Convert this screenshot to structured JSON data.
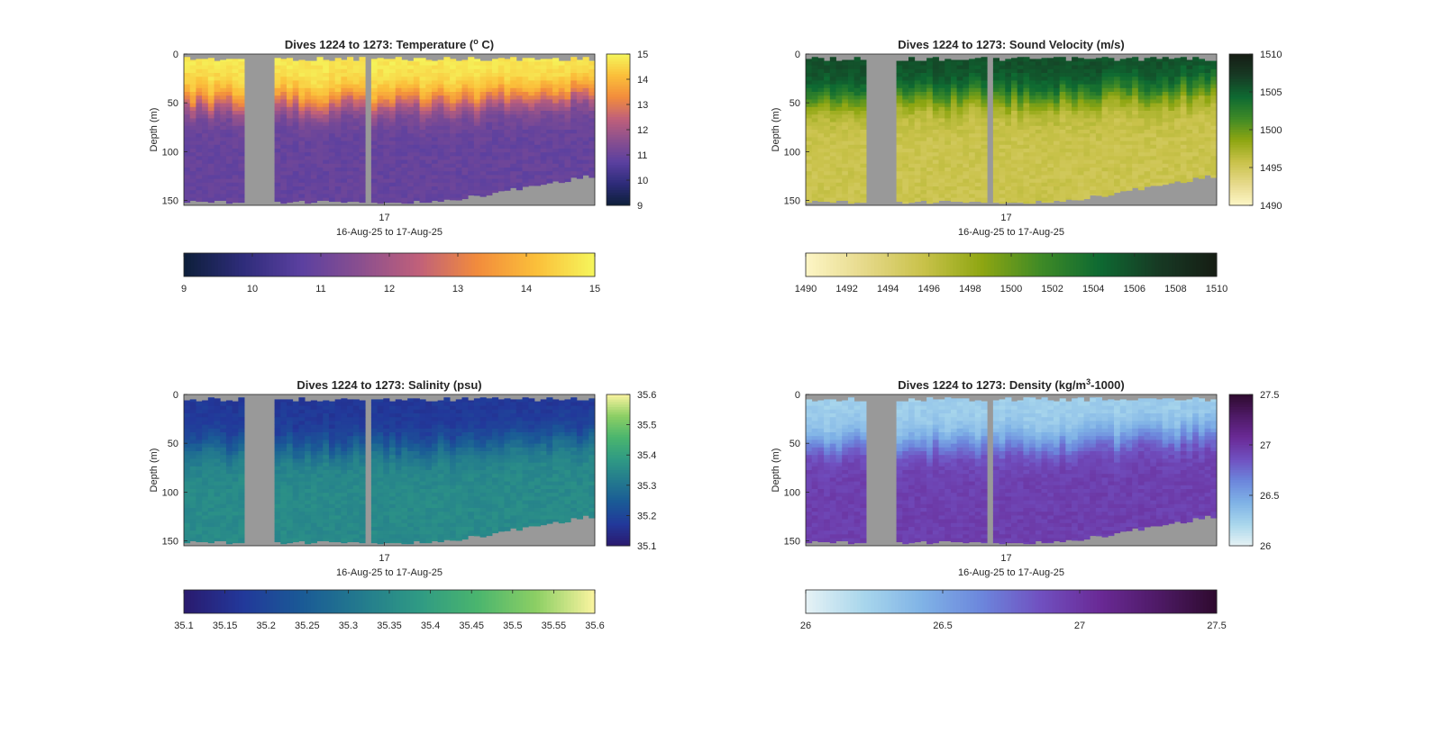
{
  "figure": {
    "colors": {
      "background": "#ffffff",
      "missing_data": "#999999",
      "axis": "#262626"
    }
  },
  "chart_data": [
    {
      "id": "temperature",
      "type": "heatmap",
      "title_parts": [
        "Dives 1224 to 1273: Temperature (",
        "o",
        " C)"
      ],
      "title_styles": [
        "",
        "sup",
        ""
      ],
      "xlabel": "16-Aug-25 to 17-Aug-25",
      "ylabel": "Depth (m)",
      "x_ticks": [
        "17"
      ],
      "y_ticks": [
        "0",
        "50",
        "100",
        "150"
      ],
      "ylim": [
        0,
        155
      ],
      "y_reversed": true,
      "dives": [
        1224,
        1273
      ],
      "time_range": [
        "16-Aug-25",
        "17-Aug-25"
      ],
      "colormap": [
        "#0d1f3a",
        "#2e2c7a",
        "#5b40a0",
        "#8a4f8f",
        "#c0607a",
        "#f28c3c",
        "#fbbf3a",
        "#f5f65c"
      ],
      "clim": [
        9,
        15
      ],
      "colorbar_ticks": [
        "9",
        "10",
        "11",
        "12",
        "13",
        "14",
        "15"
      ],
      "horizontal_colorbar_ticks": [
        "9",
        "10",
        "11",
        "12",
        "13",
        "14",
        "15"
      ],
      "profile_pattern": {
        "surface_value": 14.8,
        "deep_value": 10.9,
        "mixed_layer_depth_m": 50,
        "data_gaps_fraction": [
          [
            0.14,
            0.22
          ],
          [
            0.437,
            0.458
          ]
        ]
      }
    },
    {
      "id": "sound_velocity",
      "type": "heatmap",
      "title_parts": [
        "Dives 1224 to 1273: Sound Velocity (m/s)"
      ],
      "title_styles": [
        ""
      ],
      "xlabel": "16-Aug-25 to 17-Aug-25",
      "ylabel": "Depth (m)",
      "x_ticks": [
        "17"
      ],
      "y_ticks": [
        "0",
        "50",
        "100",
        "150"
      ],
      "ylim": [
        0,
        155
      ],
      "y_reversed": true,
      "dives": [
        1224,
        1273
      ],
      "time_range": [
        "16-Aug-25",
        "17-Aug-25"
      ],
      "colormap": [
        "#fdf6c6",
        "#e6d98a",
        "#c9c24a",
        "#8ea612",
        "#3f8a26",
        "#0e6a32",
        "#173a24",
        "#161d14"
      ],
      "clim": [
        1490,
        1510
      ],
      "colorbar_ticks": [
        "1490",
        "1495",
        "1500",
        "1505",
        "1510"
      ],
      "horizontal_colorbar_ticks": [
        "1490",
        "1492",
        "1494",
        "1496",
        "1498",
        "1500",
        "1502",
        "1504",
        "1506",
        "1508",
        "1510"
      ],
      "profile_pattern": {
        "surface_value": 1506,
        "deep_value": 1495.5,
        "mixed_layer_depth_m": 45,
        "data_gaps_fraction": [
          [
            0.14,
            0.22
          ],
          [
            0.437,
            0.458
          ]
        ]
      }
    },
    {
      "id": "salinity",
      "type": "heatmap",
      "title_parts": [
        "Dives 1224 to 1273: Salinity (psu)"
      ],
      "title_styles": [
        ""
      ],
      "xlabel": "16-Aug-25 to 17-Aug-25",
      "ylabel": "Depth (m)",
      "x_ticks": [
        "17"
      ],
      "y_ticks": [
        "0",
        "50",
        "100",
        "150"
      ],
      "ylim": [
        0,
        155
      ],
      "y_reversed": true,
      "dives": [
        1224,
        1273
      ],
      "time_range": [
        "16-Aug-25",
        "17-Aug-25"
      ],
      "colormap": [
        "#2a1a6e",
        "#22389a",
        "#1a5a96",
        "#237a8e",
        "#2f9a84",
        "#4ab56e",
        "#8ccf64",
        "#fbf4a0"
      ],
      "clim": [
        35.1,
        35.6
      ],
      "colorbar_ticks": [
        "35.1",
        "35.2",
        "35.3",
        "35.4",
        "35.5",
        "35.6"
      ],
      "horizontal_colorbar_ticks": [
        "35.1",
        "35.15",
        "35.2",
        "35.25",
        "35.3",
        "35.35",
        "35.4",
        "35.45",
        "35.5",
        "35.55",
        "35.6"
      ],
      "profile_pattern": {
        "surface_value": 35.17,
        "deep_value": 35.35,
        "mixed_layer_depth_m": 55,
        "data_gaps_fraction": [
          [
            0.14,
            0.22
          ],
          [
            0.437,
            0.458
          ]
        ]
      }
    },
    {
      "id": "density",
      "type": "heatmap",
      "title_parts": [
        "Dives 1224 to 1273: Density (kg/m",
        "3",
        "-1000)"
      ],
      "title_styles": [
        "",
        "sup",
        ""
      ],
      "xlabel": "16-Aug-25 to 17-Aug-25",
      "ylabel": "Depth (m)",
      "x_ticks": [
        "17"
      ],
      "y_ticks": [
        "0",
        "50",
        "100",
        "150"
      ],
      "ylim": [
        0,
        155
      ],
      "y_reversed": true,
      "dives": [
        1224,
        1273
      ],
      "time_range": [
        "16-Aug-25",
        "17-Aug-25"
      ],
      "colormap": [
        "#e6f2f5",
        "#a8d6ec",
        "#7fb2e6",
        "#6c86dc",
        "#7050c0",
        "#6a2a96",
        "#4e1a66",
        "#2e0a2e"
      ],
      "clim": [
        26,
        27.5
      ],
      "colorbar_ticks": [
        "26",
        "26.5",
        "27",
        "27.5"
      ],
      "horizontal_colorbar_ticks": [
        "26",
        "26.5",
        "27",
        "27.5"
      ],
      "profile_pattern": {
        "surface_value": 26.25,
        "deep_value": 26.95,
        "mixed_layer_depth_m": 50,
        "data_gaps_fraction": [
          [
            0.14,
            0.22
          ],
          [
            0.437,
            0.458
          ]
        ]
      }
    }
  ]
}
